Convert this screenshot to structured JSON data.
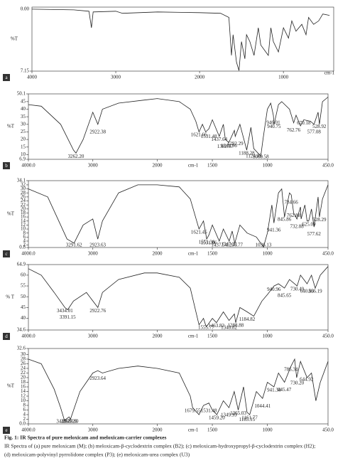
{
  "chart_data": [
    {
      "type": "line",
      "label": "a",
      "y_label": "%T",
      "x_label": "cm-1",
      "y_top_label": "0.00",
      "color": "#222",
      "xlim": [
        4000,
        400
      ],
      "ylim": [
        7.15,
        100
      ],
      "xticks": [
        4000,
        3000,
        2000,
        1000
      ],
      "yticks": [
        7.15
      ],
      "x": [
        4000,
        3500,
        3320,
        3290,
        3270,
        3000,
        2920,
        2500,
        2000,
        1750,
        1650,
        1620,
        1600,
        1560,
        1530,
        1500,
        1460,
        1440,
        1400,
        1350,
        1300,
        1270,
        1180,
        1150,
        1120,
        1060,
        1000,
        940,
        900,
        850,
        780,
        730,
        700,
        640,
        580,
        530,
        450
      ],
      "values": [
        97,
        96,
        94,
        70,
        93,
        94,
        91,
        93,
        92,
        91,
        85,
        30,
        60,
        20,
        8,
        50,
        25,
        60,
        50,
        30,
        70,
        45,
        30,
        70,
        50,
        35,
        70,
        55,
        80,
        65,
        75,
        60,
        85,
        75,
        80,
        90,
        88
      ],
      "peak_labels": []
    },
    {
      "type": "line",
      "label": "b",
      "y_label": "%T",
      "x_label": "cm-1",
      "color": "#222",
      "x_scale_change": 2000,
      "xlim": [
        4000,
        450
      ],
      "ylim": [
        6.9,
        50.1
      ],
      "xticks": [
        {
          "value": 4000,
          "label": "4000.0"
        },
        3000,
        2000,
        1500,
        1000,
        {
          "value": 450,
          "label": "450.0"
        }
      ],
      "yticks": [
        50.1,
        45,
        40,
        35,
        30,
        25,
        20,
        15,
        10,
        6.9
      ],
      "x": [
        4000,
        3800,
        3500,
        3300,
        3262,
        3150,
        3000,
        2922,
        2850,
        2600,
        2200,
        2000,
        1800,
        1700,
        1650,
        1621,
        1590,
        1560,
        1531,
        1500,
        1437,
        1400,
        1382,
        1350,
        1300,
        1292,
        1250,
        1188,
        1150,
        1124,
        1060,
        1040,
        1000,
        970,
        946,
        940,
        900,
        870,
        800,
        762,
        740,
        700,
        670,
        610,
        577,
        540,
        528,
        500,
        450
      ],
      "values": [
        43,
        42,
        30,
        13,
        11,
        20,
        38,
        30,
        40,
        44,
        46,
        47,
        45,
        40,
        32,
        25,
        30,
        25,
        27,
        33,
        22,
        30,
        20,
        18,
        26,
        22,
        30,
        13,
        28,
        14,
        9,
        20,
        40,
        44,
        36,
        30,
        43,
        45,
        40,
        31,
        36,
        29,
        33,
        32,
        30,
        38,
        30,
        45,
        48
      ],
      "peak_labels": [
        {
          "value": 3262.2,
          "label": "3262.20"
        },
        {
          "value": 2922.38,
          "label": "2922.38"
        },
        {
          "value": 1621.66,
          "label": "1621.66"
        },
        {
          "value": 1531.48,
          "label": "1531.48"
        },
        {
          "value": 1437.64,
          "label": "1437.64"
        },
        {
          "value": 1382.67,
          "label": "1382.67"
        },
        {
          "value": 1349.96,
          "label": "1349.96"
        },
        {
          "value": 1292.29,
          "label": "1292.29"
        },
        {
          "value": 1188.28,
          "label": "1188.28"
        },
        {
          "value": 1124.05,
          "label": "1124.05"
        },
        {
          "value": 1060.58,
          "label": "1060.58"
        },
        {
          "value": 946.01,
          "label": "946.01"
        },
        {
          "value": 940.75,
          "label": "940.75"
        },
        {
          "value": 762.76,
          "label": "762.76"
        },
        {
          "value": 670.18,
          "label": "670.18"
        },
        {
          "value": 577.08,
          "label": "577.08"
        },
        {
          "value": 528.92,
          "label": "528.92"
        }
      ]
    },
    {
      "type": "line",
      "label": "c",
      "y_label": "%T",
      "x_label": "cm-1",
      "color": "#222",
      "x_scale_change": 2000,
      "xlim": [
        4000,
        450
      ],
      "ylim": [
        0.8,
        34.1
      ],
      "xticks": [
        {
          "value": 4000,
          "label": "4000.0"
        },
        3000,
        2000,
        1500,
        1000,
        {
          "value": 450,
          "label": "450.0"
        }
      ],
      "yticks": [
        34.1,
        32,
        30,
        28,
        26,
        24,
        22,
        20,
        18,
        16,
        14,
        12,
        10,
        8,
        6,
        4,
        2,
        0.8
      ],
      "x": [
        4000,
        3700,
        3500,
        3400,
        3291,
        3150,
        3000,
        2923,
        2850,
        2600,
        2300,
        2000,
        1800,
        1700,
        1621,
        1580,
        1551,
        1531,
        1500,
        1437,
        1400,
        1347,
        1320,
        1296,
        1250,
        1184,
        1100,
        1036,
        1000,
        960,
        941,
        900,
        870,
        845,
        800,
        784,
        762,
        732,
        700,
        694,
        660,
        640,
        625,
        600,
        577,
        540,
        528,
        500,
        450
      ],
      "values": [
        30,
        26,
        12,
        5,
        3,
        12,
        15,
        5,
        14,
        28,
        32,
        32,
        31,
        25,
        10,
        14,
        5,
        7,
        12,
        4,
        10,
        4,
        9,
        3,
        12,
        8,
        6,
        1,
        8,
        22,
        13,
        28,
        30,
        16,
        28,
        27,
        18,
        15,
        21,
        15,
        22,
        14,
        14,
        20,
        11,
        26,
        16,
        25,
        32
      ],
      "peak_labels": [
        {
          "value": 3291.62,
          "label": "3291.62"
        },
        {
          "value": 2923.63,
          "label": "2923.63"
        },
        {
          "value": 1621.45,
          "label": "1621.45"
        },
        {
          "value": 1531.96,
          "label": "1531.96"
        },
        {
          "value": 1551.38,
          "label": "1551.38"
        },
        {
          "value": 1437.54,
          "label": "1437.54"
        },
        {
          "value": 1347.21,
          "label": "1347.21"
        },
        {
          "value": 1296.77,
          "label": "1296.77"
        },
        {
          "value": 1036.13,
          "label": "1036.13"
        },
        {
          "value": 941.36,
          "label": "941.36"
        },
        {
          "value": 845.86,
          "label": "845.86"
        },
        {
          "value": 784.66,
          "label": "784.66"
        },
        {
          "value": 762.88,
          "label": "762.88"
        },
        {
          "value": 732.88,
          "label": "732.88"
        },
        {
          "value": 625.09,
          "label": "625.09"
        },
        {
          "value": 577.62,
          "label": "577.62"
        },
        {
          "value": 528.29,
          "label": "528.29"
        }
      ]
    },
    {
      "type": "line",
      "label": "d",
      "y_label": "% T",
      "x_label": "cm-1",
      "color": "#222",
      "x_scale_change": 2000,
      "xlim": [
        4000,
        450
      ],
      "ylim": [
        34.6,
        64.9
      ],
      "xticks": [
        {
          "value": 4000,
          "label": "4000.0"
        },
        3000,
        2000,
        1500,
        1000,
        {
          "value": 450,
          "label": "450.0"
        }
      ],
      "yticks": [
        64.9,
        60,
        55,
        50,
        45,
        40,
        34.6
      ],
      "x": [
        4000,
        3800,
        3600,
        3434,
        3391,
        3300,
        3100,
        2922,
        2850,
        2600,
        2200,
        2000,
        1800,
        1700,
        1621,
        1580,
        1555,
        1500,
        1463,
        1400,
        1348,
        1300,
        1288,
        1250,
        1184,
        1124,
        1050,
        1000,
        940,
        900,
        845,
        800,
        730,
        700,
        640,
        600,
        566,
        520,
        450
      ],
      "values": [
        63,
        60,
        52,
        45,
        44,
        48,
        52,
        45,
        52,
        58,
        61,
        61,
        59,
        54,
        37,
        40,
        36,
        40,
        38,
        43,
        39,
        42,
        38,
        45,
        43,
        41,
        48,
        51,
        55,
        56,
        54,
        58,
        55,
        60,
        56,
        60,
        54,
        60,
        64
      ],
      "peak_labels": [
        {
          "value": 3434.01,
          "label": "3434.01"
        },
        {
          "value": 3391.15,
          "label": "3391.15"
        },
        {
          "value": 2922.76,
          "label": "2922.76"
        },
        {
          "value": 1555.77,
          "label": "1555.77"
        },
        {
          "value": 1463.82,
          "label": "1463.82"
        },
        {
          "value": 1348.82,
          "label": "1348.82"
        },
        {
          "value": 1288.88,
          "label": "1288.88"
        },
        {
          "value": 1184.82,
          "label": "1184.82"
        },
        {
          "value": 940.96,
          "label": "940.96"
        },
        {
          "value": 845.65,
          "label": "845.65"
        },
        {
          "value": 730.49,
          "label": "730.49"
        },
        {
          "value": 640.83,
          "label": "640.83"
        },
        {
          "value": 566.19,
          "label": "566.19"
        }
      ]
    },
    {
      "type": "line",
      "label": "e",
      "y_label": "%T",
      "x_label": "cm-1",
      "color": "#222",
      "x_scale_change": 2000,
      "xlim": [
        4000,
        450
      ],
      "ylim": [
        0,
        32.6
      ],
      "xticks": [
        {
          "value": 4000,
          "label": "4000.0"
        },
        3000,
        2000,
        1500,
        1000,
        {
          "value": 450,
          "label": "450.0"
        }
      ],
      "yticks": [
        32.6,
        30,
        28,
        26,
        24,
        22,
        20,
        18,
        16,
        14,
        12,
        10,
        8,
        6,
        4,
        2,
        {
          "value": 0,
          "label": "0.0"
        }
      ],
      "x": [
        4000,
        3800,
        3600,
        3500,
        3440,
        3368,
        3347,
        3200,
        3000,
        2923,
        2850,
        2600,
        2300,
        2000,
        1800,
        1700,
        1679,
        1621,
        1580,
        1531,
        1500,
        1459,
        1400,
        1349,
        1301,
        1265,
        1217,
        1185,
        1161,
        1100,
        1044,
        1000,
        941,
        900,
        845,
        786,
        753,
        735,
        700,
        640,
        600,
        560,
        520,
        450
      ],
      "values": [
        28,
        26,
        15,
        7,
        1.5,
        3,
        2,
        14,
        22,
        23,
        22,
        24,
        25,
        24,
        22,
        12,
        7,
        4,
        8,
        9,
        6,
        4,
        10,
        7,
        14,
        6,
        16,
        5,
        4,
        14,
        11,
        18,
        16,
        22,
        18,
        25,
        28,
        20,
        27,
        20,
        22,
        10,
        18,
        27
      ],
      "peak_labels": [
        {
          "value": 3440.79,
          "label": "3440.79"
        },
        {
          "value": 3368.23,
          "label": "3368.23"
        },
        {
          "value": 3347.8,
          "label": "3347.80"
        },
        {
          "value": 2923.64,
          "label": "2923.64"
        },
        {
          "value": 1679.55,
          "label": "1679.55"
        },
        {
          "value": 1531.48,
          "label": "1531.48"
        },
        {
          "value": 1459.2,
          "label": "1459.20"
        },
        {
          "value": 1349.99,
          "label": "1349.99"
        },
        {
          "value": 1265.03,
          "label": "1265.03"
        },
        {
          "value": 1185.15,
          "label": "1185.15"
        },
        {
          "value": 1161.77,
          "label": "1161.77"
        },
        {
          "value": 1044.41,
          "label": "1044.41"
        },
        {
          "value": 941.34,
          "label": "941.34"
        },
        {
          "value": 845.47,
          "label": "845.47"
        },
        {
          "value": 786.34,
          "label": "786.34"
        },
        {
          "value": 730.2,
          "label": "730.20"
        },
        {
          "value": 644.92,
          "label": "644.92"
        }
      ]
    }
  ],
  "caption": {
    "title": "Fig. 1: IR Spectra of pure meloxicam and meloxicam-carrier complexes",
    "lines": [
      "IR Spectra of (a) pure meloxicam (M); (b) meloxicam-β-cyclodextrin complex (B2); (c) meloxicam-hydroxypropyl-β-cyclodextrin complex (H2);",
      "(d) meloxicam-polyvinyl pyrrolidone complex (P3); (e) meloxicam-urea complex (U3)"
    ]
  }
}
